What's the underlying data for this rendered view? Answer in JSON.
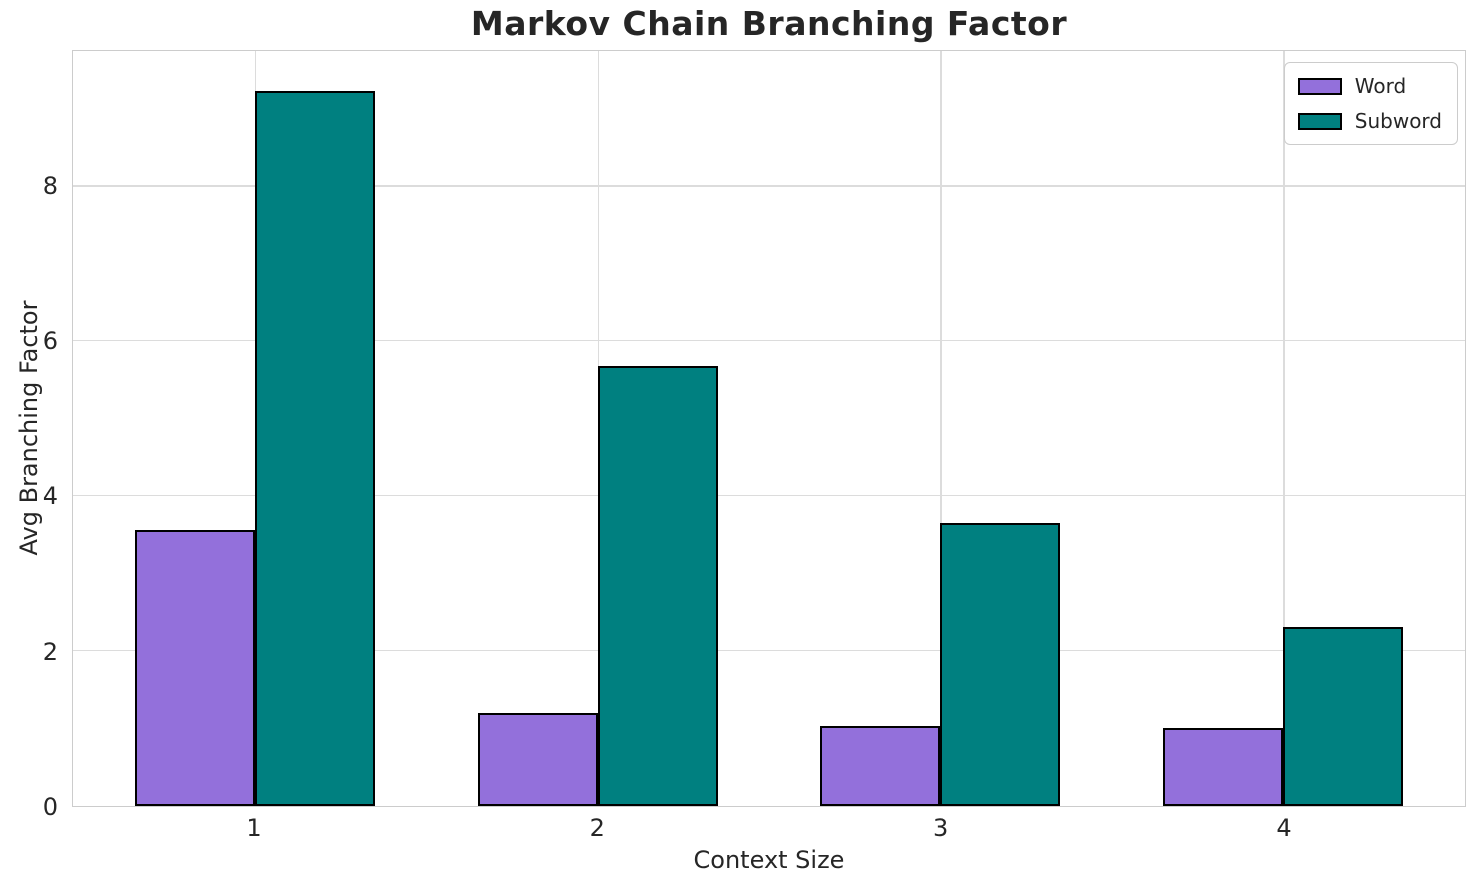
{
  "chart_data": {
    "type": "bar",
    "title": "Markov Chain Branching Factor",
    "xlabel": "Context Size",
    "ylabel": "Avg Branching Factor",
    "categories": [
      "1",
      "2",
      "3",
      "4"
    ],
    "series": [
      {
        "name": "Word",
        "color": "#9370DB",
        "values": [
          3.57,
          1.2,
          1.03,
          1.01
        ]
      },
      {
        "name": "Subword",
        "color": "#008080",
        "values": [
          9.24,
          5.68,
          3.66,
          2.31
        ]
      }
    ],
    "yticks": [
      0,
      2,
      4,
      6,
      8
    ],
    "ylim": [
      0,
      9.75
    ],
    "xlim": [
      0.47,
      4.53
    ],
    "bar_width": 0.35,
    "bar_edge_color": "#000000",
    "grid": true,
    "legend_position": "upper right",
    "grid_color": "#dcdcdc",
    "spine_color": "#cccccc",
    "text_color": "#262626",
    "background": "#ffffff"
  }
}
